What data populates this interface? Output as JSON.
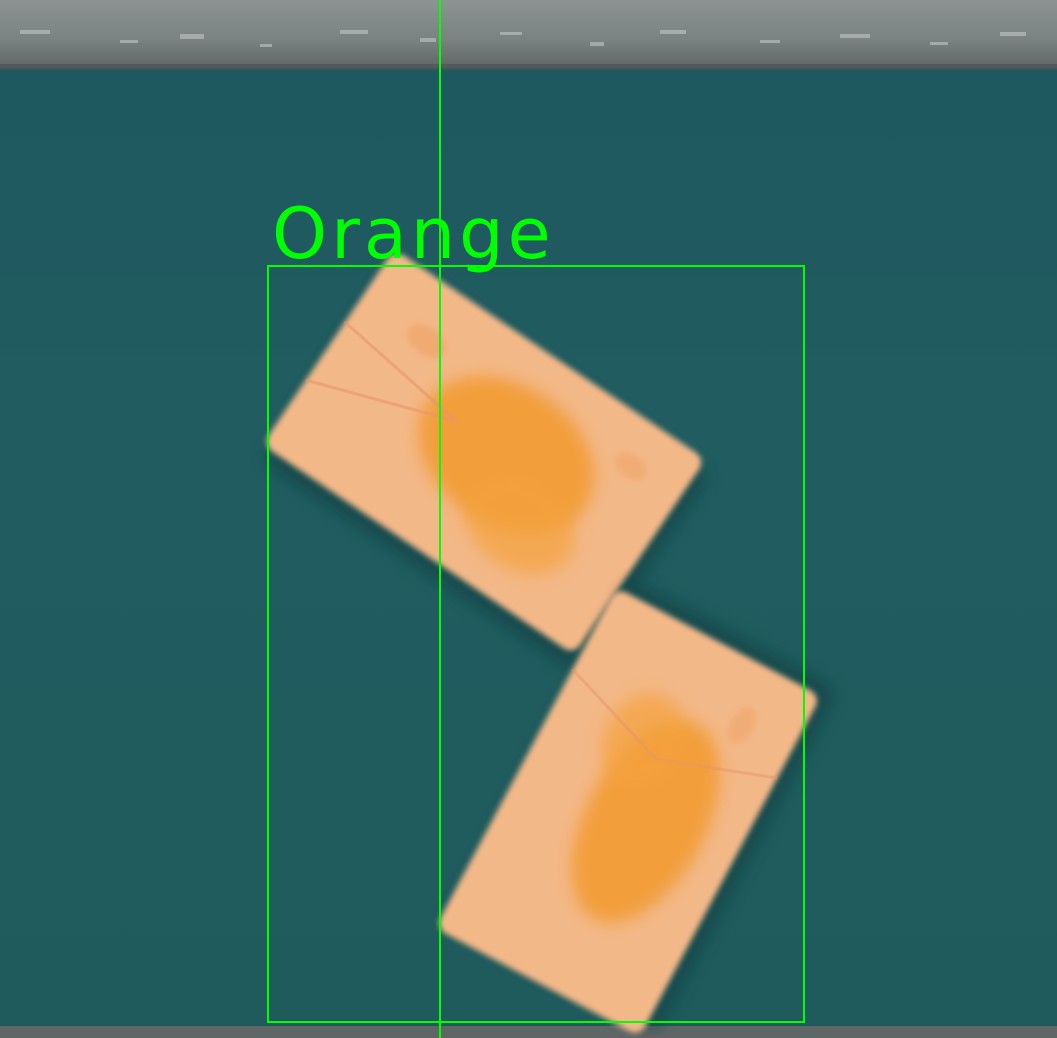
{
  "detection": {
    "label": "Orange",
    "box_color": "#00ff00"
  },
  "scene": {
    "belt_color": "#1f5a5f",
    "rail_color": "#7a8080",
    "candy_wrapper_color": "#f4b98a",
    "candy_print_color": "#f29a2e"
  }
}
